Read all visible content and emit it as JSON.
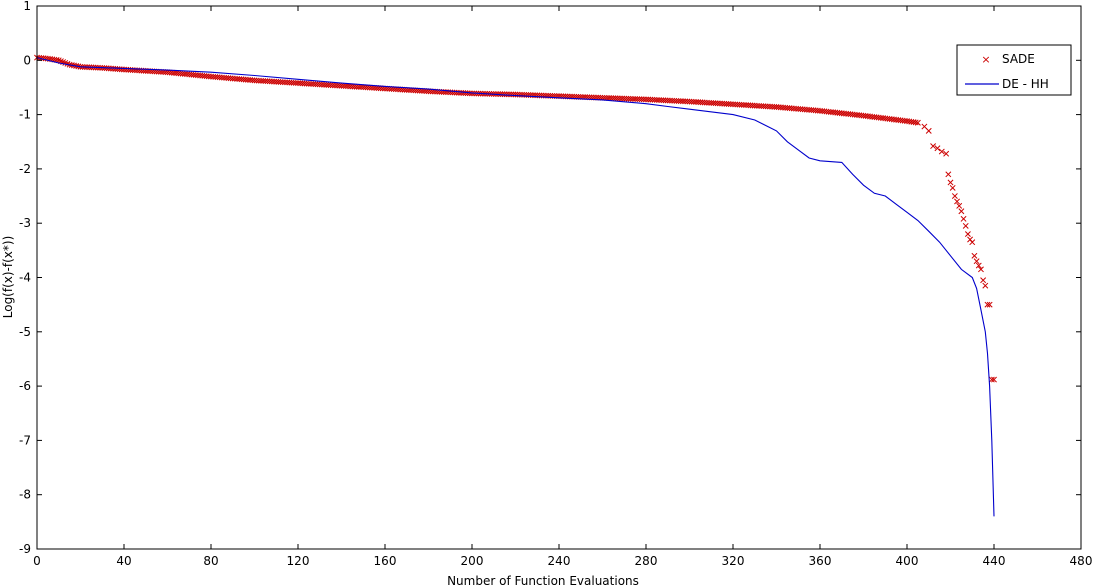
{
  "chart_data": {
    "type": "line",
    "title": "",
    "xlabel": "Number of Function Evaluations",
    "ylabel": "Log(f(x)-f(x*))",
    "xlim": [
      0,
      480
    ],
    "ylim": [
      -9,
      1
    ],
    "xticks": [
      0,
      40,
      80,
      120,
      160,
      200,
      240,
      280,
      320,
      360,
      400,
      440,
      480
    ],
    "yticks": [
      1,
      0,
      -1,
      -2,
      -3,
      -4,
      -5,
      -6,
      -7,
      -8,
      -9
    ],
    "grid": false,
    "legend_position": "top-right",
    "series": [
      {
        "name": "SADE",
        "style": "markers-x",
        "color": "#cc0000",
        "x": [
          0,
          5,
          10,
          15,
          20,
          30,
          40,
          60,
          80,
          100,
          120,
          140,
          160,
          180,
          200,
          220,
          240,
          260,
          280,
          300,
          320,
          340,
          360,
          380,
          390,
          400,
          405,
          408,
          410,
          412,
          414,
          416,
          418,
          419,
          420,
          421,
          422,
          423,
          424,
          425,
          426,
          427,
          428,
          429,
          430,
          431,
          432,
          433,
          434,
          435,
          436,
          437,
          438,
          439,
          440
        ],
        "y": [
          0.05,
          0.03,
          0.0,
          -0.08,
          -0.12,
          -0.14,
          -0.17,
          -0.22,
          -0.3,
          -0.37,
          -0.42,
          -0.47,
          -0.52,
          -0.57,
          -0.61,
          -0.63,
          -0.66,
          -0.69,
          -0.72,
          -0.76,
          -0.81,
          -0.86,
          -0.93,
          -1.02,
          -1.07,
          -1.12,
          -1.15,
          -1.22,
          -1.3,
          -1.58,
          -1.62,
          -1.68,
          -1.72,
          -2.1,
          -2.25,
          -2.35,
          -2.5,
          -2.6,
          -2.68,
          -2.78,
          -2.92,
          -3.05,
          -3.2,
          -3.3,
          -3.35,
          -3.6,
          -3.7,
          -3.78,
          -3.85,
          -4.05,
          -4.15,
          -4.5,
          -4.5,
          -5.88,
          -5.88
        ]
      },
      {
        "name": "DE - HH",
        "style": "line",
        "color": "#0000cc",
        "x": [
          0,
          10,
          20,
          40,
          60,
          80,
          100,
          120,
          140,
          160,
          180,
          200,
          220,
          240,
          260,
          280,
          290,
          300,
          320,
          330,
          340,
          345,
          350,
          355,
          360,
          370,
          375,
          380,
          385,
          390,
          395,
          400,
          405,
          410,
          415,
          418,
          420,
          425,
          430,
          432,
          434,
          436,
          437,
          438,
          439,
          440
        ],
        "y": [
          0.05,
          -0.05,
          -0.12,
          -0.15,
          -0.18,
          -0.22,
          -0.28,
          -0.35,
          -0.42,
          -0.48,
          -0.53,
          -0.6,
          -0.65,
          -0.69,
          -0.73,
          -0.8,
          -0.85,
          -0.9,
          -1.0,
          -1.1,
          -1.3,
          -1.5,
          -1.65,
          -1.8,
          -1.85,
          -1.88,
          -2.1,
          -2.3,
          -2.45,
          -2.5,
          -2.65,
          -2.8,
          -2.95,
          -3.15,
          -3.35,
          -3.5,
          -3.6,
          -3.85,
          -4.0,
          -4.2,
          -4.6,
          -5.0,
          -5.4,
          -6.0,
          -7.0,
          -8.4
        ]
      }
    ]
  }
}
